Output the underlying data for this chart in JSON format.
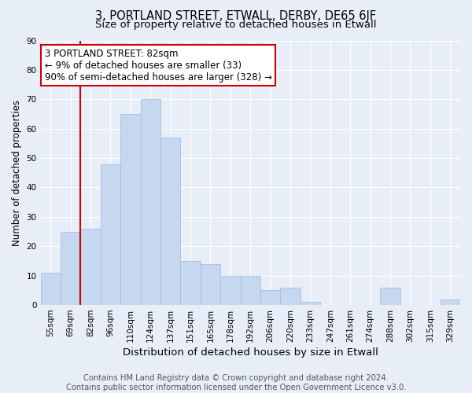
{
  "title": "3, PORTLAND STREET, ETWALL, DERBY, DE65 6JF",
  "subtitle": "Size of property relative to detached houses in Etwall",
  "xlabel": "Distribution of detached houses by size in Etwall",
  "ylabel": "Number of detached properties",
  "categories": [
    "55sqm",
    "69sqm",
    "82sqm",
    "96sqm",
    "110sqm",
    "124sqm",
    "137sqm",
    "151sqm",
    "165sqm",
    "178sqm",
    "192sqm",
    "206sqm",
    "220sqm",
    "233sqm",
    "247sqm",
    "261sqm",
    "274sqm",
    "288sqm",
    "302sqm",
    "315sqm",
    "329sqm"
  ],
  "values": [
    11,
    25,
    26,
    48,
    65,
    70,
    57,
    15,
    14,
    10,
    10,
    5,
    6,
    1,
    0,
    0,
    0,
    6,
    0,
    0,
    2
  ],
  "bar_color": "#c5d8f0",
  "bar_edge_color": "#a0b8d8",
  "highlight_index": 2,
  "highlight_color": "#cc0000",
  "annotation_line1": "3 PORTLAND STREET: 82sqm",
  "annotation_line2": "← 9% of detached houses are smaller (33)",
  "annotation_line3": "90% of semi-detached houses are larger (328) →",
  "annotation_box_color": "#ffffff",
  "annotation_box_edge_color": "#cc0000",
  "bg_color": "#e8eef7",
  "plot_bg_color": "#e8eef7",
  "footer_text": "Contains HM Land Registry data © Crown copyright and database right 2024.\nContains public sector information licensed under the Open Government Licence v3.0.",
  "ylim": [
    0,
    90
  ],
  "yticks": [
    0,
    10,
    20,
    30,
    40,
    50,
    60,
    70,
    80,
    90
  ],
  "grid_color": "#ffffff",
  "title_fontsize": 10.5,
  "subtitle_fontsize": 9.5,
  "xlabel_fontsize": 9.5,
  "ylabel_fontsize": 8.5,
  "tick_fontsize": 7.5,
  "annotation_fontsize": 8.5,
  "footer_fontsize": 7.2
}
